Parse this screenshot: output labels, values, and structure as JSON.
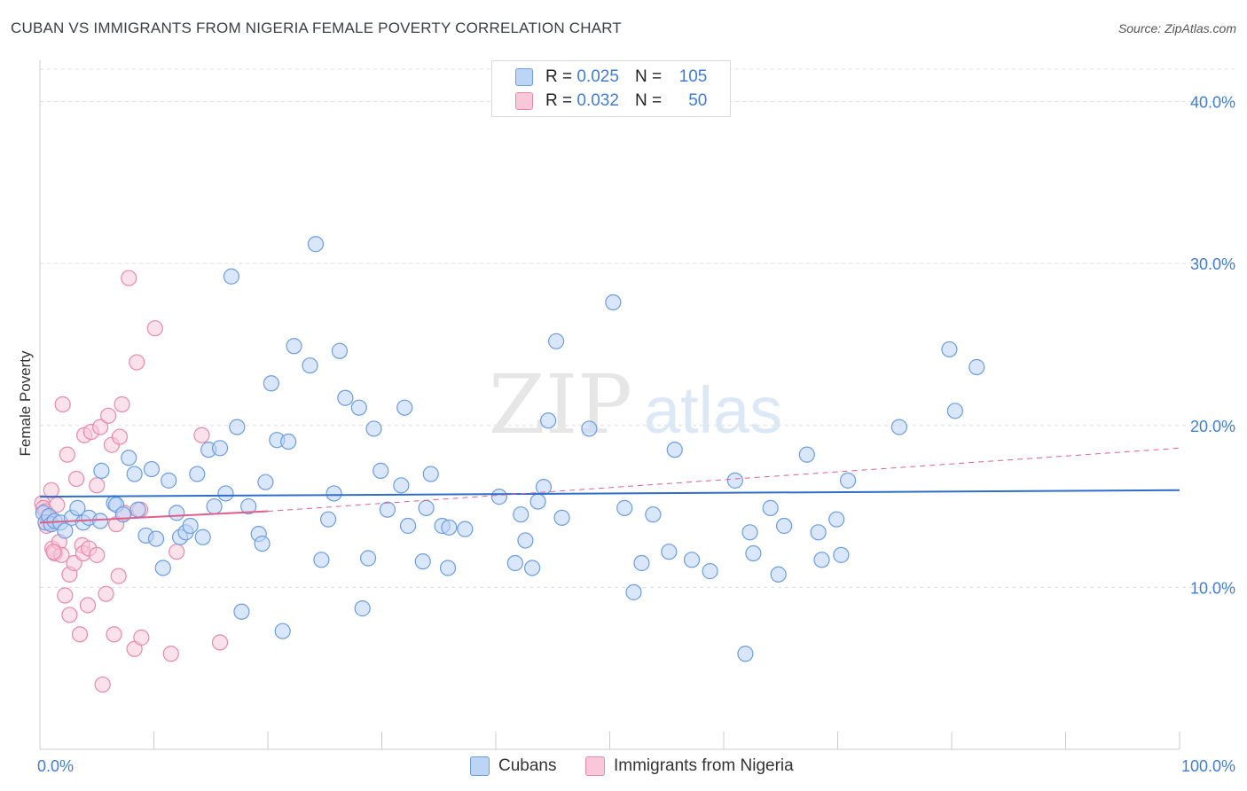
{
  "title": "CUBAN VS IMMIGRANTS FROM NIGERIA FEMALE POVERTY CORRELATION CHART",
  "source": "Source: ZipAtlas.com",
  "watermark": {
    "zip": "ZIP",
    "atlas": "atlas"
  },
  "legend": {
    "rows": [
      {
        "r_label": "R =",
        "r_value": "0.025",
        "n_label": "N =",
        "n_value": "105"
      },
      {
        "r_label": "R =",
        "r_value": "0.032",
        "n_label": "N =",
        "n_value": "50"
      }
    ]
  },
  "bottom_legend": {
    "series1": "Cubans",
    "series2": "Immigrants from Nigeria"
  },
  "colors": {
    "cubans_fill": "#bcd4f5",
    "cubans_stroke": "#6b9de0",
    "cubans_line": "#2f6fcc",
    "nigeria_fill": "#f8c8d8",
    "nigeria_stroke": "#e889aa",
    "nigeria_line": "#e0608a",
    "axis_label": "#3f7dd6",
    "grid": "#dddddd"
  },
  "chart_data": {
    "type": "scatter",
    "title": "CUBAN VS IMMIGRANTS FROM NIGERIA FEMALE POVERTY CORRELATION CHART",
    "xlabel": "",
    "ylabel": "Female Poverty",
    "xlim": [
      0,
      100
    ],
    "ylim": [
      0,
      42
    ],
    "x_tick_labels": [
      "0.0%",
      "100.0%"
    ],
    "y_ticks": [
      10,
      20,
      30,
      40
    ],
    "y_tick_labels": [
      "10.0%",
      "20.0%",
      "30.0%",
      "40.0%"
    ],
    "grid": true,
    "legend_position": "top-center",
    "series": [
      {
        "name": "Cubans",
        "r": 0.025,
        "n": 105,
        "trend": {
          "x": [
            0,
            100
          ],
          "y": [
            15.6,
            16.0
          ],
          "style": "solid"
        },
        "points": [
          [
            0.3,
            14.6
          ],
          [
            0.5,
            14.0
          ],
          [
            0.8,
            14.4
          ],
          [
            1.0,
            13.9
          ],
          [
            1.3,
            14.1
          ],
          [
            1.8,
            14.0
          ],
          [
            2.2,
            13.5
          ],
          [
            2.8,
            14.3
          ],
          [
            3.3,
            14.9
          ],
          [
            3.8,
            14.0
          ],
          [
            4.3,
            14.3
          ],
          [
            5.3,
            14.1
          ],
          [
            5.4,
            17.2
          ],
          [
            6.5,
            15.2
          ],
          [
            6.7,
            15.1
          ],
          [
            7.3,
            14.5
          ],
          [
            7.8,
            18.0
          ],
          [
            8.3,
            17.0
          ],
          [
            8.6,
            14.8
          ],
          [
            9.3,
            13.2
          ],
          [
            9.8,
            17.3
          ],
          [
            10.2,
            13.0
          ],
          [
            10.8,
            11.2
          ],
          [
            11.3,
            16.6
          ],
          [
            12.0,
            14.6
          ],
          [
            12.3,
            13.1
          ],
          [
            12.8,
            13.4
          ],
          [
            13.2,
            13.8
          ],
          [
            13.8,
            17.0
          ],
          [
            14.3,
            13.1
          ],
          [
            14.8,
            18.5
          ],
          [
            15.3,
            15.0
          ],
          [
            15.8,
            18.6
          ],
          [
            16.3,
            15.8
          ],
          [
            16.8,
            29.2
          ],
          [
            17.3,
            19.9
          ],
          [
            17.7,
            8.5
          ],
          [
            18.3,
            15.0
          ],
          [
            19.2,
            13.3
          ],
          [
            19.5,
            12.7
          ],
          [
            19.8,
            16.5
          ],
          [
            20.3,
            22.6
          ],
          [
            20.8,
            19.1
          ],
          [
            21.3,
            7.3
          ],
          [
            21.8,
            19.0
          ],
          [
            22.3,
            24.9
          ],
          [
            23.7,
            23.7
          ],
          [
            24.2,
            31.2
          ],
          [
            24.7,
            11.7
          ],
          [
            25.3,
            14.2
          ],
          [
            25.8,
            15.8
          ],
          [
            26.3,
            24.6
          ],
          [
            26.8,
            21.7
          ],
          [
            28.0,
            21.1
          ],
          [
            28.3,
            8.7
          ],
          [
            28.8,
            11.8
          ],
          [
            29.3,
            19.8
          ],
          [
            29.9,
            17.2
          ],
          [
            30.5,
            14.8
          ],
          [
            31.7,
            16.3
          ],
          [
            32.0,
            21.1
          ],
          [
            32.3,
            13.8
          ],
          [
            33.6,
            11.6
          ],
          [
            33.9,
            14.9
          ],
          [
            34.3,
            17.0
          ],
          [
            35.3,
            13.8
          ],
          [
            35.8,
            11.2
          ],
          [
            35.9,
            13.7
          ],
          [
            37.3,
            13.6
          ],
          [
            40.3,
            15.6
          ],
          [
            41.7,
            11.5
          ],
          [
            42.2,
            14.5
          ],
          [
            42.6,
            12.9
          ],
          [
            43.2,
            11.2
          ],
          [
            43.7,
            15.3
          ],
          [
            44.2,
            16.2
          ],
          [
            44.6,
            20.3
          ],
          [
            45.3,
            25.2
          ],
          [
            45.8,
            14.3
          ],
          [
            48.2,
            19.8
          ],
          [
            50.3,
            27.6
          ],
          [
            51.3,
            14.9
          ],
          [
            52.1,
            9.7
          ],
          [
            52.8,
            11.5
          ],
          [
            53.8,
            14.5
          ],
          [
            55.2,
            12.2
          ],
          [
            55.7,
            18.5
          ],
          [
            57.2,
            11.7
          ],
          [
            58.8,
            11.0
          ],
          [
            61.0,
            16.6
          ],
          [
            61.9,
            5.9
          ],
          [
            62.3,
            13.4
          ],
          [
            62.6,
            12.1
          ],
          [
            64.1,
            14.9
          ],
          [
            64.8,
            10.8
          ],
          [
            65.3,
            13.8
          ],
          [
            67.3,
            18.2
          ],
          [
            68.3,
            13.4
          ],
          [
            68.6,
            11.7
          ],
          [
            69.9,
            14.2
          ],
          [
            70.3,
            12.0
          ],
          [
            70.9,
            16.6
          ],
          [
            75.4,
            19.9
          ],
          [
            79.8,
            24.7
          ],
          [
            80.3,
            20.9
          ],
          [
            82.2,
            23.6
          ]
        ]
      },
      {
        "name": "Immigrants from Nigeria",
        "r": 0.032,
        "n": 50,
        "trend": {
          "x": [
            0,
            20
          ],
          "y": [
            14.0,
            14.7
          ],
          "style": "solid",
          "extension": {
            "x": [
              20,
              100
            ],
            "y": [
              14.7,
              18.6
            ],
            "style": "dashed"
          }
        },
        "points": [
          [
            0.2,
            15.2
          ],
          [
            0.3,
            14.9
          ],
          [
            0.5,
            14.7
          ],
          [
            0.7,
            14.3
          ],
          [
            0.8,
            14.0
          ],
          [
            1.0,
            16.0
          ],
          [
            1.1,
            12.4
          ],
          [
            1.3,
            12.1
          ],
          [
            1.5,
            15.1
          ],
          [
            1.7,
            12.8
          ],
          [
            1.9,
            12.0
          ],
          [
            2.0,
            21.3
          ],
          [
            2.2,
            9.5
          ],
          [
            2.4,
            18.2
          ],
          [
            2.6,
            8.3
          ],
          [
            2.6,
            10.8
          ],
          [
            3.0,
            11.5
          ],
          [
            3.2,
            16.7
          ],
          [
            3.5,
            7.1
          ],
          [
            3.7,
            12.6
          ],
          [
            3.8,
            12.1
          ],
          [
            3.9,
            19.4
          ],
          [
            4.2,
            8.9
          ],
          [
            4.3,
            12.4
          ],
          [
            4.5,
            19.6
          ],
          [
            5.0,
            16.3
          ],
          [
            5.0,
            12.0
          ],
          [
            5.3,
            19.9
          ],
          [
            5.5,
            4.0
          ],
          [
            5.8,
            9.6
          ],
          [
            6.0,
            20.6
          ],
          [
            6.3,
            18.8
          ],
          [
            6.5,
            7.1
          ],
          [
            6.7,
            13.9
          ],
          [
            6.9,
            10.7
          ],
          [
            7.0,
            19.3
          ],
          [
            7.2,
            21.3
          ],
          [
            7.4,
            14.6
          ],
          [
            7.8,
            29.1
          ],
          [
            8.3,
            6.2
          ],
          [
            8.5,
            23.9
          ],
          [
            8.8,
            14.8
          ],
          [
            8.9,
            6.9
          ],
          [
            10.1,
            26.0
          ],
          [
            11.5,
            5.9
          ],
          [
            12.0,
            12.2
          ],
          [
            14.2,
            19.4
          ],
          [
            15.8,
            6.6
          ],
          [
            0.6,
            13.8
          ],
          [
            1.2,
            12.2
          ]
        ]
      }
    ]
  }
}
